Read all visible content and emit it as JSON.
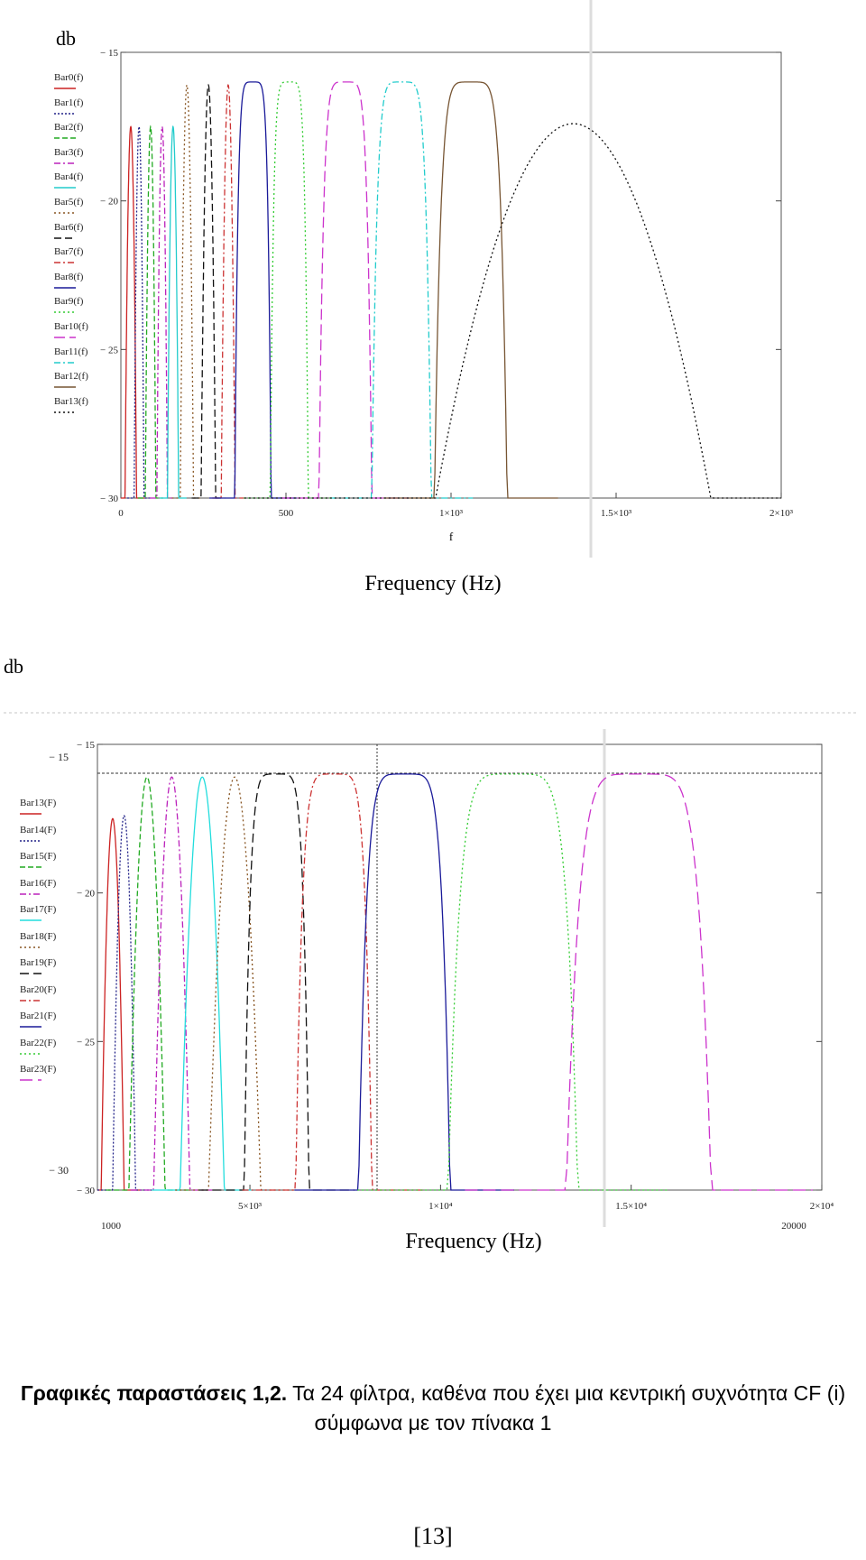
{
  "figure1": {
    "ylabel": "db",
    "x_axis_var": "f",
    "xlabel": "Frequency (Hz)",
    "legend": [
      "Bar0(f)",
      "Bar1(f)",
      "Bar2(f)",
      "Bar3(f)",
      "Bar4(f)",
      "Bar5(f)",
      "Bar6(f)",
      "Bar7(f)",
      "Bar8(f)",
      "Bar9(f)",
      "Bar10(f)",
      "Bar11(f)",
      "Bar12(f)",
      "Bar13(f)"
    ],
    "y_ticks": [
      "− 15",
      "− 20",
      "− 25",
      "− 30"
    ],
    "x_ticks": [
      "0",
      "500",
      "1×10³",
      "1.5×10³",
      "2×10³"
    ]
  },
  "figure2": {
    "ylabel": "db",
    "xlabel": "Frequency (Hz)",
    "legend": [
      "Bar13(F)",
      "Bar14(F)",
      "Bar15(F)",
      "Bar16(F)",
      "Bar17(F)",
      "Bar18(F)",
      "Bar19(F)",
      "Bar20(F)",
      "Bar21(F)",
      "Bar22(F)",
      "Bar23(F)"
    ],
    "y_ticks": [
      "− 15",
      "− 20",
      "− 25",
      "− 30"
    ],
    "y_outer_ticks": [
      "− 15",
      "− 30"
    ],
    "x_ticks": [
      "5×10³",
      "1×10⁴",
      "1.5×10⁴",
      "2×10⁴"
    ],
    "x_limits": [
      "1000",
      "20000"
    ]
  },
  "caption": {
    "bold": "Γραφικές παραστάσεις 1,2.",
    "text": " Τα 24 φίλτρα, καθένα που έχει μια κεντρική συχνότητα CF (i)",
    "line2": "σύμφωνα με τον πίνακα 1"
  },
  "page_number": "[13]",
  "chart_data": [
    {
      "type": "line",
      "ylabel": "db",
      "xlabel": "f",
      "xlim": [
        0,
        2000
      ],
      "ylim": [
        -30,
        -15
      ],
      "series": [
        {
          "name": "Bar0(f)",
          "color": "#cc2222",
          "dash": "",
          "center": 30,
          "bw": 35,
          "peak": -17.5,
          "flat": false
        },
        {
          "name": "Bar1(f)",
          "color": "#222288",
          "dash": "2,2",
          "center": 55,
          "bw": 30,
          "peak": -17.5,
          "flat": false
        },
        {
          "name": "Bar2(f)",
          "color": "#22aa22",
          "dash": "6,3",
          "center": 90,
          "bw": 32,
          "peak": -17.5,
          "flat": false
        },
        {
          "name": "Bar3(f)",
          "color": "#bb22bb",
          "dash": "7,3,2,3",
          "center": 125,
          "bw": 32,
          "peak": -17.5,
          "flat": false
        },
        {
          "name": "Bar4(f)",
          "color": "#22cccc",
          "dash": "",
          "center": 158,
          "bw": 34,
          "peak": -17.5,
          "flat": false
        },
        {
          "name": "Bar5(f)",
          "color": "#885522",
          "dash": "2,3",
          "center": 200,
          "bw": 38,
          "peak": -16.1,
          "flat": false
        },
        {
          "name": "Bar6(f)",
          "color": "#111111",
          "dash": "8,4",
          "center": 265,
          "bw": 42,
          "peak": -16.1,
          "flat": false
        },
        {
          "name": "Bar7(f)",
          "color": "#cc3333",
          "dash": "7,3,2,3",
          "center": 325,
          "bw": 40,
          "peak": -16.1,
          "flat": false
        },
        {
          "name": "Bar8(f)",
          "color": "#1a1a99",
          "dash": "",
          "center": 400,
          "bw": 110,
          "peak": -16.0,
          "flat": true
        },
        {
          "name": "Bar9(f)",
          "color": "#33cc33",
          "dash": "2,3",
          "center": 510,
          "bw": 115,
          "peak": -16.0,
          "flat": true
        },
        {
          "name": "Bar10(f)",
          "color": "#cc33cc",
          "dash": "12,5",
          "center": 680,
          "bw": 160,
          "peak": -16.0,
          "flat": true
        },
        {
          "name": "Bar11(f)",
          "color": "#22cccc",
          "dash": "7,3,2,3",
          "center": 850,
          "bw": 180,
          "peak": -16.0,
          "flat": true
        },
        {
          "name": "Bar12(f)",
          "color": "#775533",
          "dash": "",
          "center": 1060,
          "bw": 220,
          "peak": -16.0,
          "flat": true
        },
        {
          "name": "Bar13(f)",
          "color": "#111111",
          "dash": "2,3",
          "center": 1370,
          "bw": 830,
          "peak": -17.4,
          "flat": false
        }
      ]
    },
    {
      "type": "line",
      "ylabel": "db",
      "xlabel": "Frequency (Hz)",
      "xlim": [
        1000,
        20000
      ],
      "ylim": [
        -30,
        -15
      ],
      "series": [
        {
          "name": "Bar13(F)",
          "color": "#cc2222",
          "dash": "",
          "center": 1400,
          "bw": 600,
          "peak": -17.5,
          "flat": false
        },
        {
          "name": "Bar14(F)",
          "color": "#222288",
          "dash": "2,2",
          "center": 1700,
          "bw": 600,
          "peak": -17.4,
          "flat": false
        },
        {
          "name": "Bar15(F)",
          "color": "#22aa22",
          "dash": "6,3",
          "center": 2300,
          "bw": 900,
          "peak": -16.1,
          "flat": false
        },
        {
          "name": "Bar16(F)",
          "color": "#bb22bb",
          "dash": "7,3,2,3",
          "center": 2950,
          "bw": 900,
          "peak": -16.1,
          "flat": false
        },
        {
          "name": "Bar17(F)",
          "color": "#22dddd",
          "dash": "",
          "center": 3750,
          "bw": 1100,
          "peak": -16.1,
          "flat": false
        },
        {
          "name": "Bar18(F)",
          "color": "#885522",
          "dash": "2,3",
          "center": 4600,
          "bw": 1300,
          "peak": -16.1,
          "flat": false
        },
        {
          "name": "Bar19(F)",
          "color": "#111111",
          "dash": "10,5",
          "center": 5700,
          "bw": 1700,
          "peak": -16.0,
          "flat": true
        },
        {
          "name": "Bar20(F)",
          "color": "#cc3333",
          "dash": "7,3,2,3",
          "center": 7200,
          "bw": 2000,
          "peak": -16.0,
          "flat": true
        },
        {
          "name": "Bar21(F)",
          "color": "#1a1a99",
          "dash": "",
          "center": 9050,
          "bw": 2400,
          "peak": -16.0,
          "flat": true
        },
        {
          "name": "Bar22(F)",
          "color": "#33cc33",
          "dash": "2,3",
          "center": 11900,
          "bw": 3400,
          "peak": -16.0,
          "flat": true
        },
        {
          "name": "Bar23(F)",
          "color": "#cc33cc",
          "dash": "14,6",
          "center": 15200,
          "bw": 3800,
          "peak": -16.0,
          "flat": true
        }
      ]
    }
  ]
}
